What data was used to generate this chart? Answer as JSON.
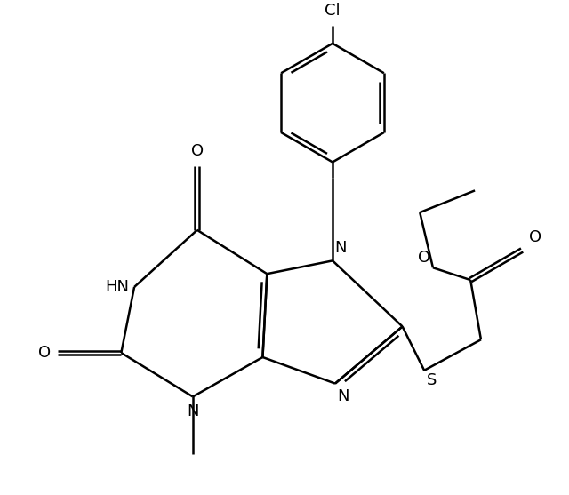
{
  "figwidth": 6.4,
  "figheight": 5.57,
  "dpi": 100,
  "bg_color": "#ffffff",
  "line_color": "#000000",
  "lw": 1.8,
  "font_size": 13,
  "xlim": [
    0,
    12
  ],
  "ylim": [
    0,
    10.5
  ]
}
